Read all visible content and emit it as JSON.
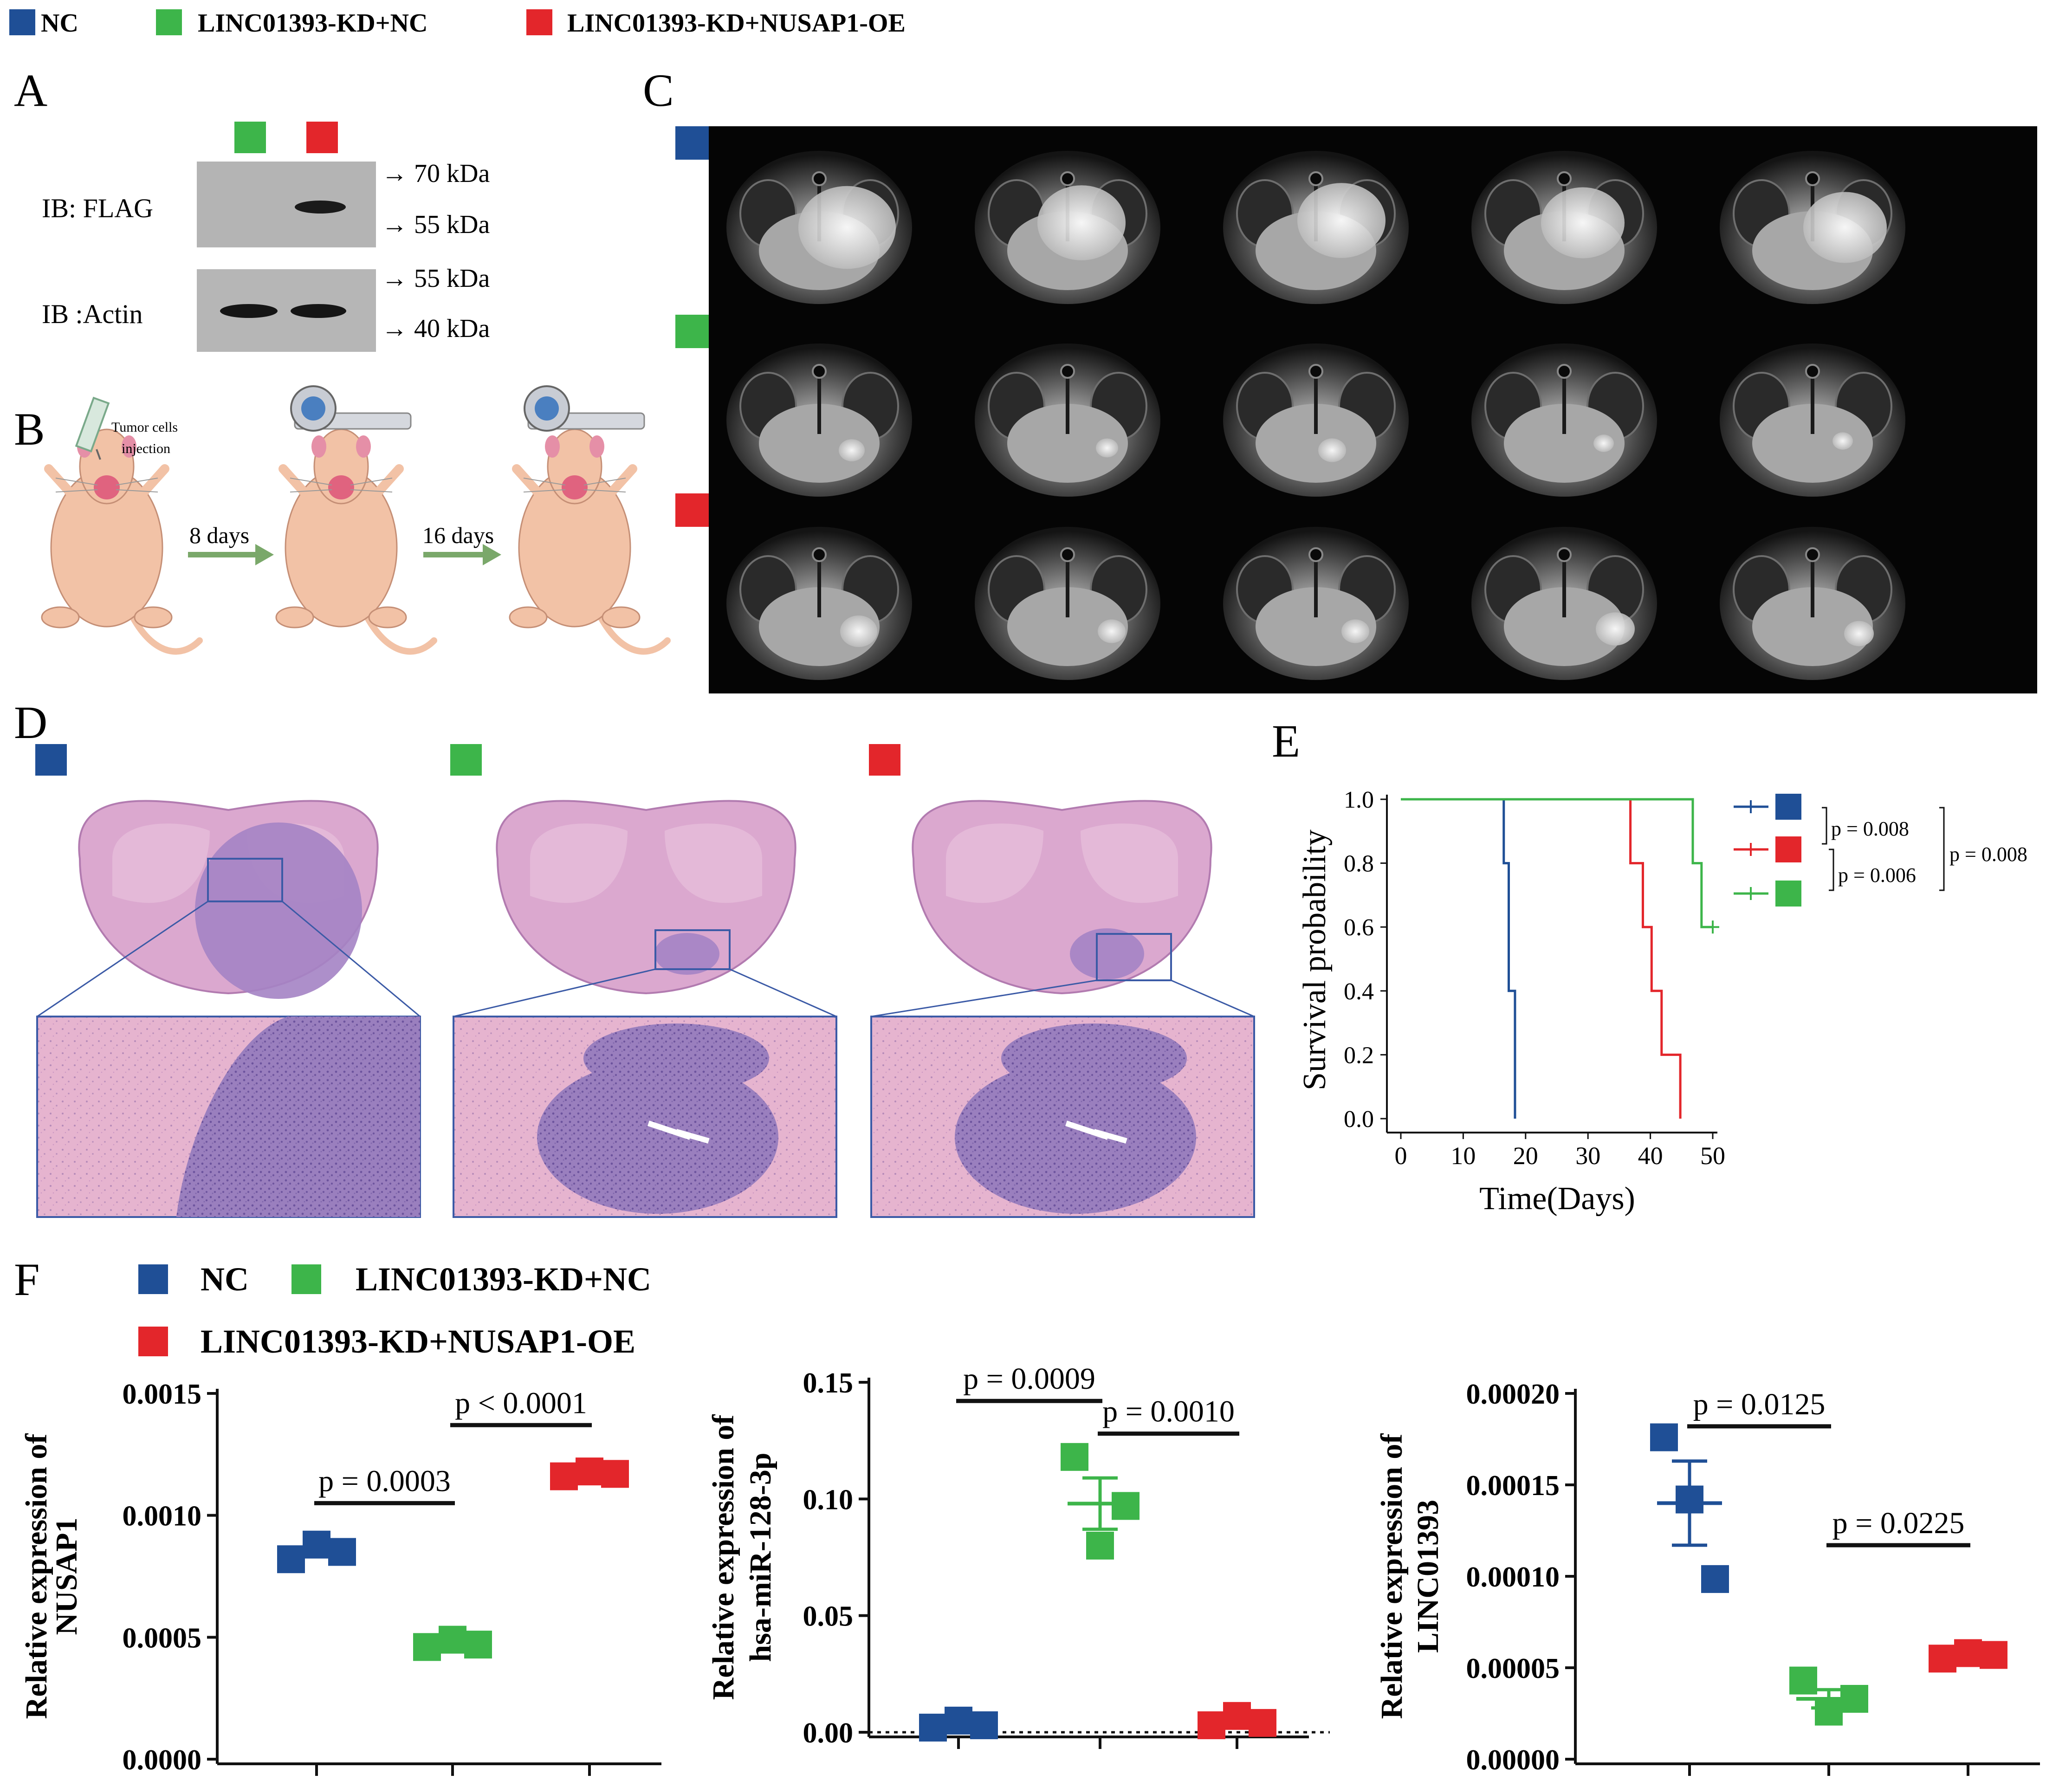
{
  "colors": {
    "nc": "#1f4f96",
    "kd": "#3db54a",
    "oe": "#e3262b",
    "ink": "#111111"
  },
  "legend": [
    "NC",
    "LINC01393-KD+NC",
    "LINC01393-KD+NUSAP1-OE"
  ],
  "panels": {
    "a": "A",
    "b": "B",
    "c": "C",
    "d": "D",
    "e": "E",
    "f": "F"
  },
  "panel_a": {
    "flag_label": "IB: FLAG",
    "actin_label": "IB :Actin",
    "markers": [
      "→ 70 kDa",
      "→ 55 kDa",
      "→ 55 kDa",
      "→ 40 kDa"
    ]
  },
  "panel_b": {
    "injection": [
      "Tumor cells",
      "injection"
    ],
    "step1": "8 days",
    "step2": "16 days"
  },
  "chart_data": [
    {
      "id": "survival",
      "type": "line",
      "title": "",
      "xlabel": "Time(Days)",
      "ylabel": "Survival probability",
      "xlim": [
        0,
        50
      ],
      "ylim": [
        0,
        1
      ],
      "xticks": [
        0,
        10,
        20,
        30,
        40,
        50
      ],
      "yticks": [
        "0.0",
        "0.2",
        "0.4",
        "0.6",
        "0.8",
        "1.0"
      ],
      "series": [
        {
          "name": "NC",
          "color": "nc",
          "steps": [
            [
              0,
              1.0
            ],
            [
              16.5,
              1.0
            ],
            [
              16.5,
              0.8
            ],
            [
              17.3,
              0.8
            ],
            [
              17.3,
              0.4
            ],
            [
              18.3,
              0.4
            ],
            [
              18.3,
              0.0
            ]
          ]
        },
        {
          "name": "LINC01393-KD+NUSAP1-OE",
          "color": "oe",
          "steps": [
            [
              0,
              1.0
            ],
            [
              36.8,
              1.0
            ],
            [
              36.8,
              0.8
            ],
            [
              38.8,
              0.8
            ],
            [
              38.8,
              0.6
            ],
            [
              40.2,
              0.6
            ],
            [
              40.2,
              0.4
            ],
            [
              41.8,
              0.4
            ],
            [
              41.8,
              0.2
            ],
            [
              44.8,
              0.2
            ],
            [
              44.8,
              0.0
            ]
          ]
        },
        {
          "name": "LINC01393-KD+NC",
          "color": "kd",
          "steps": [
            [
              0,
              1.0
            ],
            [
              46.8,
              1.0
            ],
            [
              46.8,
              0.8
            ],
            [
              48.2,
              0.8
            ],
            [
              48.2,
              0.6
            ],
            [
              50,
              0.6
            ]
          ]
        }
      ],
      "censor": {
        "x": 50,
        "y": 0.6
      },
      "pvalues": [
        "p = 0.008",
        "p = 0.006",
        "p = 0.008"
      ]
    },
    {
      "id": "nusap1",
      "type": "scatter",
      "ylabel": [
        "Relative expression of",
        "NUSAP1"
      ],
      "ylim": [
        0,
        0.0015
      ],
      "yticks": [
        "0.0000",
        "0.0005",
        "0.0010",
        "0.0015"
      ],
      "groups": [
        "NC",
        "LINC01393-KD+NC",
        "LINC01393-KD+NUSAP1-OE"
      ],
      "points": [
        [
          0.00082,
          0.00088,
          0.00085
        ],
        [
          0.00046,
          0.00049,
          0.00047
        ],
        [
          0.00116,
          0.00118,
          0.00117
        ]
      ],
      "mean": [
        0.00085,
        0.000475,
        0.00117
      ],
      "sem": [
        2e-05,
        1e-05,
        6e-06
      ],
      "comparisons": [
        {
          "a": 0,
          "b": 1,
          "y": 0.00105,
          "label": "p = 0.0003"
        },
        {
          "a": 1,
          "b": 2,
          "y": 0.00137,
          "label": "p < 0.0001"
        }
      ]
    },
    {
      "id": "mir128",
      "type": "scatter",
      "ylabel": [
        "Relative expression of",
        "hsa-miR-128-3p"
      ],
      "ylim": [
        0,
        0.15
      ],
      "yticks": [
        "0.00",
        "0.05",
        "0.10",
        "0.15"
      ],
      "groups": [
        "NC",
        "LINC01393-KD+NC",
        "LINC01393-KD+NUSAP1-OE"
      ],
      "points": [
        [
          0.002,
          0.005,
          0.003
        ],
        [
          0.118,
          0.08,
          0.097
        ],
        [
          0.003,
          0.007,
          0.004
        ]
      ],
      "mean": [
        0.0035,
        0.098,
        0.0045
      ],
      "sem": [
        0.001,
        0.011,
        0.0012
      ],
      "baseline": 0,
      "comparisons": [
        {
          "a": 0,
          "b": 1,
          "y": 0.142,
          "label": "p = 0.0009"
        },
        {
          "a": 1,
          "b": 2,
          "y": 0.128,
          "label": "p = 0.0010"
        }
      ]
    },
    {
      "id": "linc01393",
      "type": "scatter",
      "ylabel": [
        "Relative expression of",
        "LINC01393"
      ],
      "ylim": [
        0,
        0.0002
      ],
      "yticks": [
        "0.00000",
        "0.00005",
        "0.00010",
        "0.00015",
        "0.00020"
      ],
      "groups": [
        "NC",
        "LINC01393-KD+NC",
        "LINC01393-KD+NUSAP1-OE"
      ],
      "points": [
        [
          0.000176,
          0.000142,
          9.85e-05
        ],
        [
          4.3e-05,
          2.6e-05,
          3.3e-05
        ],
        [
          5.5e-05,
          5.8e-05,
          5.7e-05
        ]
      ],
      "mean": [
        0.00014,
        3.3e-05,
        5.67e-05
      ],
      "sem": [
        2.3e-05,
        5e-06,
        1.2e-06
      ],
      "comparisons": [
        {
          "a": 0,
          "b": 1,
          "y": 0.000182,
          "label": "p = 0.0125"
        },
        {
          "a": 1,
          "b": 2,
          "y": 0.000117,
          "label": "p = 0.0225"
        }
      ]
    }
  ]
}
